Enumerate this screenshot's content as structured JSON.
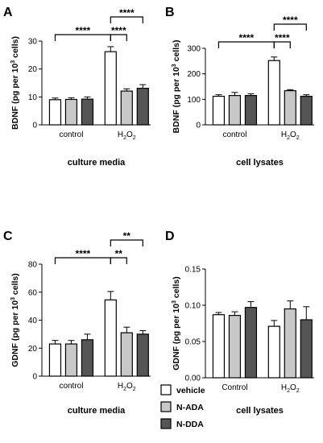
{
  "colors": {
    "vehicle": "#ffffff",
    "N-ADA": "#c8c8c8",
    "N-DDA": "#555555",
    "stroke": "#000000"
  },
  "legend": [
    "vehicle",
    "N-ADA",
    "N-DDA"
  ],
  "chart_data": [
    {
      "panel": "A",
      "type": "bar",
      "ylabel": "BDNF (pg per 10³ cells)",
      "xlabel": "culture media",
      "categories": [
        "control",
        "H₂O₂"
      ],
      "ylim": [
        0,
        30
      ],
      "yticks": [
        0,
        10,
        20,
        30
      ],
      "series": [
        {
          "name": "vehicle",
          "values": [
            9,
            26.2
          ],
          "errors": [
            0.6,
            1.8
          ]
        },
        {
          "name": "N-ADA",
          "values": [
            9.1,
            12.1
          ],
          "errors": [
            0.6,
            0.8
          ]
        },
        {
          "name": "N-DDA",
          "values": [
            9.2,
            13.1
          ],
          "errors": [
            0.8,
            1.3
          ]
        }
      ],
      "annotations": [
        {
          "label": "****",
          "from": [
            0,
            0
          ],
          "to": [
            1,
            0
          ]
        },
        {
          "label": "****",
          "from": [
            1,
            0
          ],
          "to": [
            1,
            1
          ]
        },
        {
          "label": "****",
          "from": [
            1,
            0
          ],
          "to": [
            1,
            2
          ]
        }
      ]
    },
    {
      "panel": "B",
      "type": "bar",
      "ylabel": "BDNF (pg per 10³ cells)",
      "xlabel": "cell lysates",
      "categories": [
        "control",
        "H₂O₂"
      ],
      "ylim": [
        0,
        300
      ],
      "yticks": [
        0,
        100,
        200,
        300
      ],
      "series": [
        {
          "name": "vehicle",
          "values": [
            112,
            252
          ],
          "errors": [
            6,
            14
          ]
        },
        {
          "name": "N-ADA",
          "values": [
            115,
            134
          ],
          "errors": [
            12,
            4
          ]
        },
        {
          "name": "N-DDA",
          "values": [
            115,
            112
          ],
          "errors": [
            7,
            6
          ]
        }
      ],
      "annotations": [
        {
          "label": "****",
          "from": [
            0,
            0
          ],
          "to": [
            1,
            0
          ]
        },
        {
          "label": "****",
          "from": [
            1,
            0
          ],
          "to": [
            1,
            1
          ]
        },
        {
          "label": "****",
          "from": [
            1,
            0
          ],
          "to": [
            1,
            2
          ]
        }
      ]
    },
    {
      "panel": "C",
      "type": "bar",
      "ylabel": "GDNF (pg per 10³ cells)",
      "xlabel": "culture media",
      "categories": [
        "control",
        "H₂O₂"
      ],
      "ylim": [
        0,
        80
      ],
      "yticks": [
        0,
        20,
        40,
        60,
        80
      ],
      "series": [
        {
          "name": "vehicle",
          "values": [
            23,
            54.5
          ],
          "errors": [
            2.5,
            6
          ]
        },
        {
          "name": "N-ADA",
          "values": [
            23,
            31
          ],
          "errors": [
            2.5,
            4
          ]
        },
        {
          "name": "N-DDA",
          "values": [
            26,
            30
          ],
          "errors": [
            4,
            2.5
          ]
        }
      ],
      "annotations": [
        {
          "label": "****",
          "from": [
            0,
            0
          ],
          "to": [
            1,
            0
          ]
        },
        {
          "label": "**",
          "from": [
            1,
            0
          ],
          "to": [
            1,
            1
          ]
        },
        {
          "label": "**",
          "from": [
            1,
            0
          ],
          "to": [
            1,
            2
          ]
        }
      ]
    },
    {
      "panel": "D",
      "type": "bar",
      "ylabel": "GDNF (pg per 10³ cells)",
      "xlabel": "cell lysates",
      "categories": [
        "Control",
        "H₂O₂"
      ],
      "ylim": [
        0,
        0.15
      ],
      "yticks": [
        "0.00",
        "0.05",
        "0.10",
        "0.15"
      ],
      "series": [
        {
          "name": "vehicle",
          "values": [
            0.087,
            0.071
          ],
          "errors": [
            0.003,
            0.008
          ]
        },
        {
          "name": "N-ADA",
          "values": [
            0.086,
            0.095
          ],
          "errors": [
            0.005,
            0.011
          ]
        },
        {
          "name": "N-DDA",
          "values": [
            0.097,
            0.08
          ],
          "errors": [
            0.008,
            0.018
          ]
        }
      ],
      "annotations": []
    }
  ]
}
